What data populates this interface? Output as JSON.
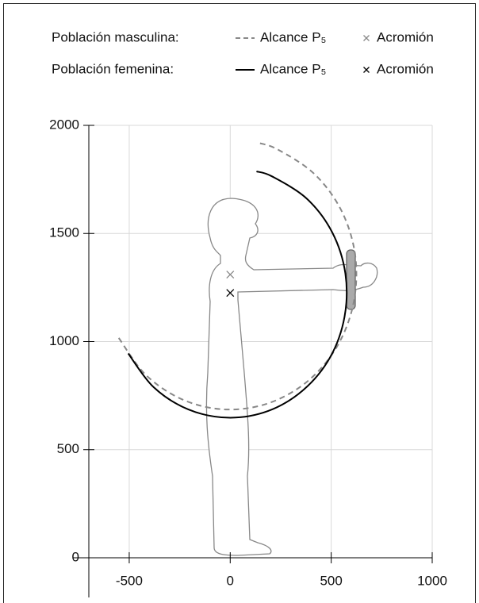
{
  "chart_data": {
    "type": "line",
    "xlim": [
      -700,
      1000
    ],
    "xticks": [
      -500,
      0,
      500,
      1000
    ],
    "ylim": [
      0,
      2000
    ],
    "yticks": [
      0,
      500,
      1000,
      1500,
      2000
    ],
    "grid": true,
    "groups": [
      {
        "name": "Población masculina:",
        "series": [
          {
            "name": "Alcance P₅",
            "color": "#888888",
            "dash": true,
            "x": [
              -552,
              -418,
              -234,
              -22,
              193,
              385,
              530,
              611,
              619,
              552,
              418,
              234,
              130
            ],
            "y": [
              1017,
              846,
              731,
              686,
              716,
              818,
              979,
              1180,
              1397,
              1603,
              1774,
              1889,
              1921
            ]
          },
          {
            "name": "Acromión",
            "color": "#888888",
            "marker": "x",
            "x": [
              0
            ],
            "y": [
              1310
            ]
          }
        ]
      },
      {
        "name": "Población femenina:",
        "series": [
          {
            "name": "Alcance P₅",
            "color": "#000000",
            "dash": false,
            "x": [
              -505,
              -379,
              -207,
              -10,
              188,
              363,
              495,
              566,
              570,
              505,
              379,
              207,
              130
            ],
            "y": [
              945,
              789,
              686,
              648,
              679,
              777,
              928,
              1115,
              1315,
              1505,
              1661,
              1764,
              1787
            ]
          },
          {
            "name": "Acromión",
            "color": "#000000",
            "marker": "x",
            "x": [
              0
            ],
            "y": [
              1225
            ]
          }
        ]
      }
    ]
  }
}
